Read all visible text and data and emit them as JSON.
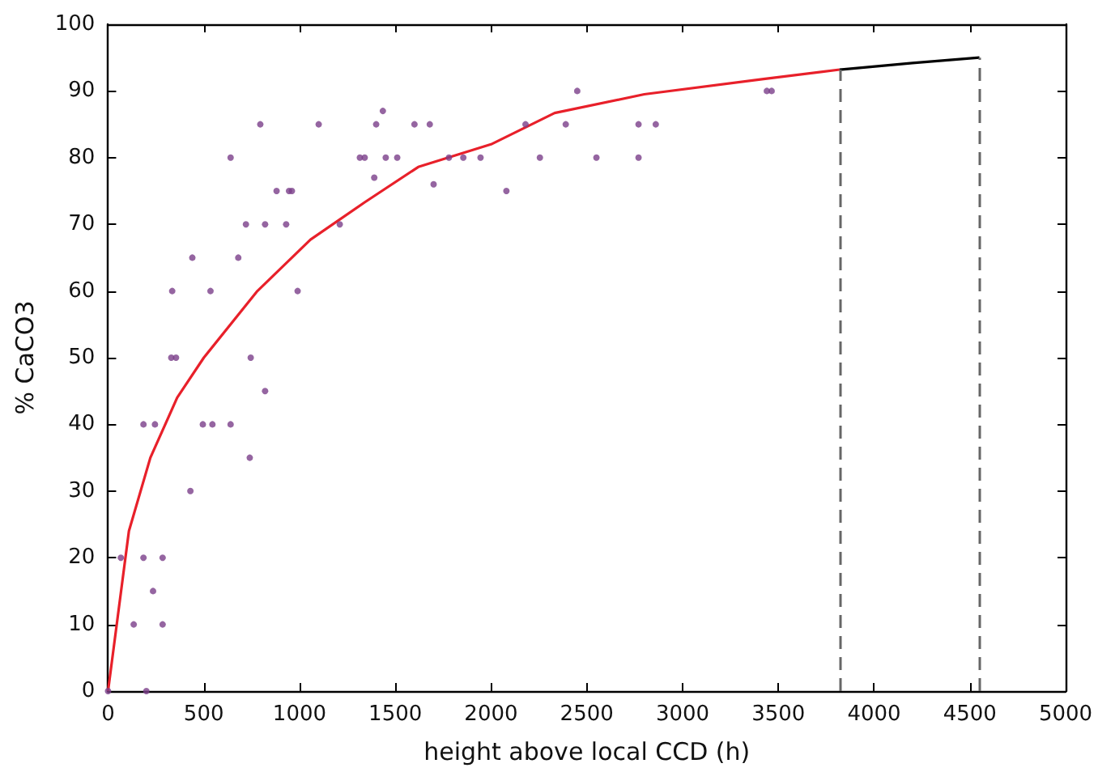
{
  "chart_data": {
    "type": "scatter",
    "xlabel": "height above local CCD (h)",
    "ylabel": "% CaCO3",
    "xlim": [
      0,
      5000
    ],
    "xticks": [
      0,
      500,
      1000,
      1500,
      2000,
      2500,
      3000,
      3500,
      4000,
      4500,
      5000
    ],
    "ylim": [
      0,
      100
    ],
    "yticks": [
      0,
      10,
      20,
      30,
      40,
      50,
      60,
      70,
      80,
      90,
      100
    ],
    "grid": false,
    "marker": "circle",
    "series": [
      {
        "color": "#7b3f8a",
        "x": [
          0,
          67,
          134,
          185,
          185,
          200,
          235,
          245,
          285,
          285,
          335,
          330,
          355,
          430,
          440,
          495,
          535,
          545,
          640,
          640,
          680,
          720,
          740,
          745,
          795,
          820,
          820,
          880,
          930,
          945,
          960,
          990,
          1100,
          1210,
          1315,
          1340,
          1390,
          1400,
          1435,
          1450,
          1510,
          1600,
          1680,
          1700,
          1780,
          1855,
          1945,
          2080,
          2180,
          2255,
          2390,
          2450,
          2550,
          2770,
          2770,
          2860,
          3440,
          3465
        ],
        "values": [
          0,
          20,
          10,
          40,
          20,
          0,
          15,
          40,
          20,
          10,
          60,
          50,
          50,
          30,
          65,
          40,
          60,
          40,
          80,
          40,
          65,
          70,
          35,
          50,
          85,
          45,
          70,
          75,
          70,
          75,
          75,
          60,
          85,
          70,
          80,
          80,
          77,
          85,
          87,
          80,
          80,
          85,
          85,
          76,
          80,
          80,
          80,
          75,
          85,
          80,
          85,
          90,
          80,
          80,
          85,
          85,
          90,
          90
        ]
      },
      {
        "type": "line",
        "marker": "none",
        "color": "#e8202a",
        "x": [
          0,
          109,
          221,
          361,
          500,
          780,
          1057,
          1340,
          1620,
          2000,
          2332,
          2800,
          3423,
          3820
        ],
        "values": [
          0,
          24,
          35,
          44,
          50,
          60,
          67.7,
          73.3,
          78.6,
          82,
          86.7,
          89.5,
          91.8,
          93.2
        ]
      },
      {
        "type": "line",
        "marker": "none",
        "color": "#000000",
        "x": [
          3820,
          4200,
          4550
        ],
        "values": [
          93.2,
          94.2,
          95
        ]
      }
    ],
    "ref_lines": [
      {
        "axis": "x",
        "value": 3820,
        "color": "#666666",
        "line_style": "dashed"
      },
      {
        "axis": "x",
        "value": 4550,
        "color": "#666666",
        "line_style": "dashed"
      }
    ]
  }
}
